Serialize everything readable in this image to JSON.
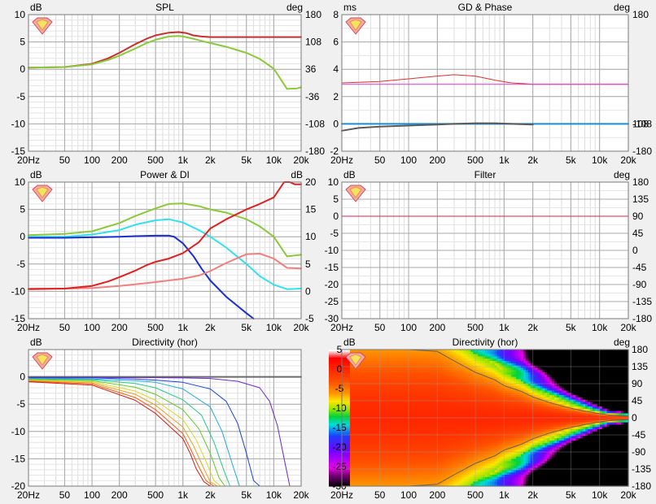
{
  "chart_data": [
    {
      "type": "line",
      "title": "SPL",
      "left_unit": "dB",
      "right_unit": "deg",
      "x_ticks": [
        "20Hz",
        "50",
        "100",
        "200",
        "500",
        "1k",
        "2k",
        "5k",
        "10k",
        "20k"
      ],
      "x_tick_values": [
        20,
        50,
        100,
        200,
        500,
        1000,
        2000,
        5000,
        10000,
        20000
      ],
      "y_left_ticks": [
        "10",
        "5",
        "0",
        "-5",
        "-10",
        "-15"
      ],
      "y_left_range": [
        -15,
        10
      ],
      "y_right_ticks": [
        "180",
        "108",
        "36",
        "-36",
        "-108",
        "-180"
      ],
      "logo": true,
      "series": [
        {
          "color": "#c83030",
          "x": [
            20,
            50,
            100,
            150,
            200,
            300,
            400,
            500,
            700,
            900,
            1100,
            1300,
            1600,
            2000,
            3000,
            5000,
            10000,
            20000
          ],
          "y": [
            0.3,
            0.4,
            1.0,
            2.0,
            3.0,
            4.6,
            5.6,
            6.2,
            6.7,
            6.8,
            6.6,
            6.2,
            6.0,
            5.9,
            5.9,
            5.9,
            5.9,
            5.9
          ],
          "width": 2
        },
        {
          "color": "#8cc83c",
          "x": [
            20,
            50,
            100,
            150,
            200,
            300,
            400,
            500,
            700,
            900,
            1000,
            1300,
            1600,
            2000,
            3000,
            5000,
            7000,
            10000,
            14000,
            18000,
            20000
          ],
          "y": [
            0.3,
            0.4,
            0.9,
            1.7,
            2.5,
            3.8,
            4.8,
            5.4,
            6.0,
            6.1,
            6.0,
            5.6,
            5.2,
            4.8,
            4.1,
            3.0,
            1.9,
            0.1,
            -3.6,
            -3.5,
            -3.3
          ],
          "width": 2
        }
      ]
    },
    {
      "type": "line",
      "title": "GD & Phase",
      "left_unit": "ms",
      "right_unit": "deg",
      "x_ticks": [
        "20Hz",
        "50",
        "100",
        "200",
        "500",
        "1k",
        "2k",
        "5k",
        "10k",
        "20k"
      ],
      "x_tick_values": [
        20,
        50,
        100,
        200,
        500,
        1000,
        2000,
        5000,
        10000,
        20000
      ],
      "y_left_ticks": [
        "8",
        "6",
        "4",
        "2",
        "0",
        "-2"
      ],
      "y_left_range": [
        -2,
        8
      ],
      "y_right_ticks": [
        "180",
        "108",
        "-108",
        "-180"
      ],
      "logo": true,
      "series": [
        {
          "color": "#e03030",
          "x": [
            20,
            50,
            100,
            200,
            300,
            500,
            800,
            1200,
            2000,
            5000,
            20000
          ],
          "y": [
            3.0,
            3.1,
            3.3,
            3.5,
            3.6,
            3.5,
            3.2,
            3.0,
            2.9,
            2.9,
            2.9
          ],
          "width": 1
        },
        {
          "color": "#cc44cc",
          "x": [
            20,
            20000
          ],
          "y": [
            2.9,
            2.9
          ],
          "width": 1
        },
        {
          "color": "#1a8cd8",
          "x": [
            20,
            20000
          ],
          "y": [
            0.0,
            0.0
          ],
          "width": 2
        },
        {
          "color": "#5a5a5a",
          "x": [
            20,
            30,
            50,
            80,
            120,
            200,
            300,
            500,
            800,
            1200,
            2000
          ],
          "y": [
            -0.5,
            -0.3,
            -0.2,
            -0.15,
            -0.1,
            -0.05,
            0.0,
            0.05,
            0.05,
            0.0,
            -0.05
          ],
          "width": 2
        }
      ]
    },
    {
      "type": "line",
      "title": "Power & DI",
      "left_unit": "dB",
      "right_unit": "dB",
      "x_ticks": [
        "20Hz",
        "50",
        "100",
        "200",
        "500",
        "1k",
        "2k",
        "5k",
        "10k",
        "20k"
      ],
      "x_tick_values": [
        20,
        50,
        100,
        200,
        500,
        1000,
        2000,
        5000,
        10000,
        20000
      ],
      "y_left_ticks": [
        "10",
        "5",
        "0",
        "-5",
        "-10",
        "-15"
      ],
      "y_left_range": [
        -15,
        10
      ],
      "y_right_ticks": [
        "20",
        "15",
        "10",
        "5",
        "0",
        "-5"
      ],
      "logo": true,
      "series": [
        {
          "color": "#8cc83c",
          "x": [
            20,
            50,
            100,
            200,
            300,
            500,
            700,
            1000,
            1500,
            2000,
            3000,
            5000,
            7000,
            10000,
            14000,
            20000
          ],
          "y": [
            0.3,
            0.5,
            1.0,
            2.5,
            3.8,
            5.2,
            6.0,
            6.1,
            5.6,
            5.0,
            4.4,
            3.2,
            1.9,
            0.0,
            -3.6,
            -3.3
          ],
          "width": 2
        },
        {
          "color": "#33e0f0",
          "x": [
            20,
            50,
            100,
            200,
            300,
            500,
            700,
            1000,
            1500,
            2000,
            3000,
            5000,
            7000,
            10000,
            14000,
            20000
          ],
          "y": [
            0.0,
            0.0,
            0.4,
            1.2,
            2.2,
            3.0,
            3.2,
            2.6,
            1.2,
            0.0,
            -2.0,
            -5.0,
            -7.2,
            -8.8,
            -9.6,
            -9.5
          ],
          "width": 2
        },
        {
          "color": "#1a2fd0",
          "x": [
            20,
            50,
            100,
            200,
            300,
            500,
            700,
            800,
            1000,
            1300,
            1600,
            2000,
            3000,
            5000,
            6000
          ],
          "y": [
            -0.2,
            -0.2,
            -0.1,
            0.0,
            0.1,
            0.2,
            0.2,
            0.0,
            -1.2,
            -3.5,
            -5.8,
            -8.0,
            -11.0,
            -14.0,
            -15.0
          ],
          "width": 2
        },
        {
          "color": "#f08080",
          "x": [
            20,
            50,
            100,
            200,
            300,
            500,
            1000,
            1500,
            2000,
            3000,
            5000,
            7000,
            10000,
            14000,
            20000
          ],
          "y": [
            -9.5,
            -9.5,
            -9.4,
            -9.0,
            -8.7,
            -8.3,
            -7.7,
            -7.1,
            -6.3,
            -4.8,
            -3.2,
            -3.1,
            -4.0,
            -5.7,
            -5.8
          ],
          "width": 2
        },
        {
          "color": "#e02020",
          "x": [
            20,
            50,
            100,
            150,
            200,
            300,
            400,
            500,
            700,
            1000,
            1500,
            2000,
            3000,
            5000,
            7000,
            10000,
            13000,
            15000,
            17000,
            20000
          ],
          "y": [
            -9.6,
            -9.5,
            -9.0,
            -8.2,
            -7.4,
            -6.2,
            -5.2,
            -4.6,
            -4.0,
            -3.0,
            -1.0,
            1.5,
            3.2,
            5.0,
            6.0,
            7.2,
            10.2,
            10.6,
            9.6,
            9.6
          ],
          "width": 2
        }
      ]
    },
    {
      "type": "line",
      "title": "Filter",
      "left_unit": "dB",
      "right_unit": "deg",
      "x_ticks": [
        "20Hz",
        "50",
        "100",
        "200",
        "500",
        "1k",
        "2k",
        "5k",
        "10k",
        "20k"
      ],
      "x_tick_values": [
        20,
        50,
        100,
        200,
        500,
        1000,
        2000,
        5000,
        10000,
        20000
      ],
      "y_left_ticks": [
        "10",
        "5",
        "0",
        "-5",
        "-10",
        "-15",
        "-20",
        "-25",
        "-30"
      ],
      "y_left_range": [
        -30,
        10
      ],
      "y_right_ticks": [
        "180",
        "135",
        "90",
        "45",
        "0",
        "-45",
        "-90",
        "-135",
        "-180"
      ],
      "logo": true,
      "series": [
        {
          "color": "#e0204a",
          "x": [
            20,
            20000
          ],
          "y": [
            0,
            0
          ],
          "width": 1
        }
      ]
    },
    {
      "type": "line",
      "title": "Directivity (hor)",
      "left_unit": "dB",
      "right_unit": "",
      "x_ticks": [
        "20Hz",
        "50",
        "100",
        "200",
        "500",
        "1k",
        "2k",
        "5k",
        "10k",
        "20k"
      ],
      "x_tick_values": [
        20,
        50,
        100,
        200,
        500,
        1000,
        2000,
        5000,
        10000,
        20000
      ],
      "y_left_ticks": [
        "0",
        "-5",
        "-10",
        "-15",
        "-20"
      ],
      "y_left_range": [
        -20,
        5
      ],
      "y_right_ticks": [],
      "logo": true,
      "series": [
        {
          "color": "#6a6a6a",
          "x": [
            20,
            20000
          ],
          "y": [
            0,
            0
          ],
          "width": 2
        },
        {
          "color": "#6a2ad0",
          "x": [
            20,
            100,
            500,
            1000,
            2000,
            4000,
            7000,
            9000,
            11000,
            13000,
            15000
          ],
          "y": [
            -0.1,
            -0.1,
            -0.15,
            -0.2,
            -0.3,
            -0.8,
            -2.0,
            -4.5,
            -9.0,
            -15.0,
            -20.0
          ],
          "width": 1
        },
        {
          "color": "#1a44e0",
          "x": [
            20,
            100,
            300,
            500,
            1000,
            2000,
            3000,
            4000,
            5000,
            6000,
            7000
          ],
          "y": [
            -0.2,
            -0.2,
            -0.4,
            -0.6,
            -1.0,
            -2.2,
            -4.5,
            -8.5,
            -14.0,
            -19.0,
            -20.0
          ],
          "width": 1
        },
        {
          "color": "#22aadd",
          "x": [
            20,
            100,
            300,
            500,
            1000,
            2000,
            2700,
            3500,
            4200
          ],
          "y": [
            -0.3,
            -0.4,
            -0.7,
            -1.0,
            -2.2,
            -5.5,
            -10.0,
            -16.0,
            -20.0
          ],
          "width": 1
        },
        {
          "color": "#22cc88",
          "x": [
            20,
            100,
            300,
            500,
            1000,
            1600,
            2200,
            2800,
            3300
          ],
          "y": [
            -0.4,
            -0.5,
            -1.2,
            -2.0,
            -4.2,
            -7.0,
            -12.0,
            -17.0,
            -20.0
          ],
          "width": 1
        },
        {
          "color": "#66cc22",
          "x": [
            20,
            100,
            300,
            500,
            1000,
            1500,
            2000,
            2500,
            2900
          ],
          "y": [
            -0.5,
            -0.7,
            -1.9,
            -3.2,
            -6.0,
            -9.5,
            -14.0,
            -18.5,
            -20.0
          ],
          "width": 1
        },
        {
          "color": "#d8d820",
          "x": [
            20,
            100,
            300,
            500,
            1000,
            1400,
            1800,
            2200,
            2600
          ],
          "y": [
            -0.6,
            -0.9,
            -2.6,
            -4.3,
            -7.8,
            -11.5,
            -15.5,
            -19.0,
            -20.0
          ],
          "width": 1
        },
        {
          "color": "#f0a020",
          "x": [
            20,
            100,
            300,
            500,
            1000,
            1300,
            1700,
            2000,
            2400
          ],
          "y": [
            -0.7,
            -1.1,
            -3.2,
            -5.2,
            -9.2,
            -12.5,
            -16.8,
            -19.2,
            -20.0
          ],
          "width": 1
        },
        {
          "color": "#f06010",
          "x": [
            20,
            100,
            300,
            500,
            1000,
            1200,
            1500,
            1800,
            2200
          ],
          "y": [
            -0.8,
            -1.3,
            -3.8,
            -6.0,
            -10.4,
            -13.0,
            -16.5,
            -19.0,
            -20.0
          ],
          "width": 1
        },
        {
          "color": "#d81818",
          "x": [
            20,
            100,
            300,
            500,
            1000,
            1200,
            1400,
            1700,
            2000
          ],
          "y": [
            -0.9,
            -1.5,
            -4.3,
            -6.7,
            -11.3,
            -14.0,
            -16.8,
            -19.2,
            -20.0
          ],
          "width": 1
        }
      ]
    },
    {
      "type": "heatmap",
      "title": "Directivity (hor)",
      "left_unit": "dB",
      "right_unit": "deg",
      "x_ticks": [
        "20Hz",
        "50",
        "100",
        "200",
        "500",
        "1k",
        "2k",
        "5k",
        "10k",
        "20k"
      ],
      "x_tick_values": [
        20,
        50,
        100,
        200,
        500,
        1000,
        2000,
        5000,
        10000,
        20000
      ],
      "y_right_ticks": [
        "180",
        "135",
        "90",
        "45",
        "0",
        "-45",
        "-90",
        "-135",
        "-180"
      ],
      "y_range": [
        -180,
        180
      ],
      "colorbar_ticks": [
        "5",
        "0",
        "-5",
        "-10",
        "-15",
        "-20",
        "-25",
        "-30"
      ],
      "colorbar_range": [
        -30,
        5
      ],
      "logo": true,
      "beamwidth_contour": {
        "frequency": [
          20,
          100,
          200,
          300,
          500,
          800,
          1000,
          1500,
          2000,
          3000,
          5000,
          8000,
          12000,
          16000,
          20000
        ],
        "angle": [
          180,
          180,
          175,
          150,
          120,
          100,
          85,
          70,
          55,
          40,
          25,
          15,
          8,
          6,
          5
        ]
      }
    }
  ]
}
